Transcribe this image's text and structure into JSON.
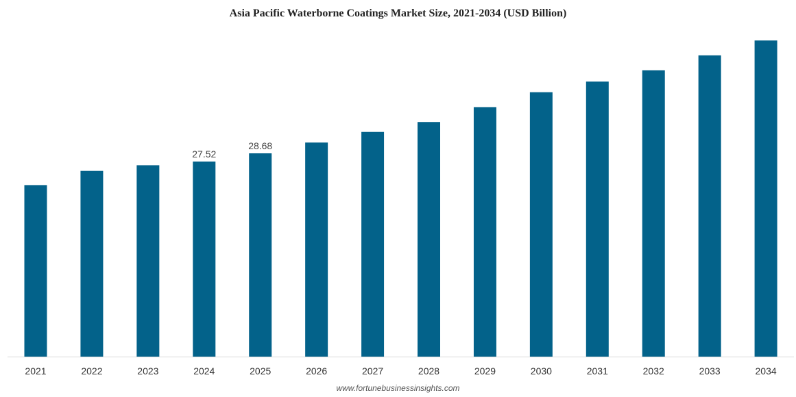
{
  "chart_data": {
    "type": "bar",
    "title": "Asia Pacific Waterborne Coatings Market Size, 2021-2034 (USD Billion)",
    "xlabel": "",
    "ylabel": "",
    "categories": [
      "2021",
      "2022",
      "2023",
      "2024",
      "2025",
      "2026",
      "2027",
      "2028",
      "2029",
      "2030",
      "2031",
      "2032",
      "2033",
      "2034"
    ],
    "series": [
      {
        "values": [
          24.2,
          26.2,
          27.0,
          27.52,
          28.68,
          30.2,
          31.7,
          33.1,
          35.2,
          37.3,
          38.8,
          40.4,
          42.5,
          44.6
        ],
        "data_labels": [
          "",
          "",
          "",
          "27.52",
          "28.68",
          "",
          "",
          "",
          "",
          "",
          "",
          "",
          "",
          ""
        ]
      }
    ],
    "ylim": [
      0,
      45
    ],
    "grid": false,
    "legend": "none",
    "bar_color": "#03628a",
    "axis_color": "#d9d9d9"
  },
  "footer": {
    "source": "www.fortunebusinessinsights.com"
  }
}
